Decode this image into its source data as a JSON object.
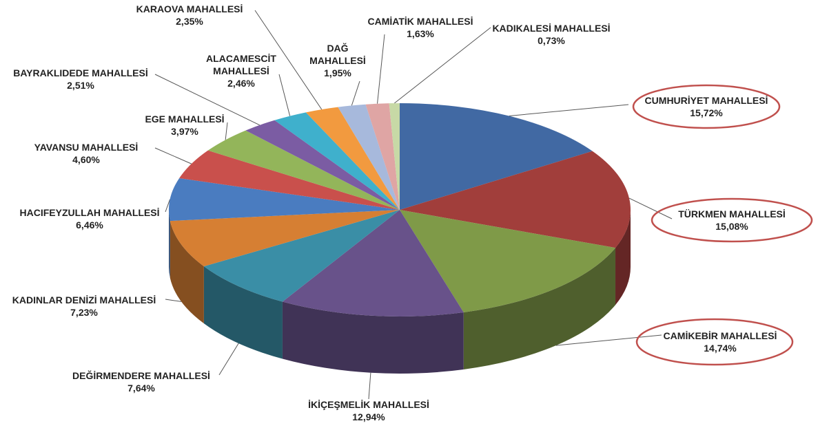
{
  "chart_data": {
    "type": "pie3d",
    "categories": [
      "CUMHURİYET MAHALLESİ",
      "TÜRKMEN MAHALLESİ",
      "CAMİKEBİR MAHALLESİ",
      "İKİÇEŞMELİK MAHALLESİ",
      "DEĞİRMENDERE MAHALLESİ",
      "KADINLAR DENİZİ MAHALLESİ",
      "HACIFEYZULLAH MAHALLESİ",
      "YAVANSU MAHALLESİ",
      "EGE MAHALLESİ",
      "BAYRAKLIDEDE MAHALLESİ",
      "ALACAMESCİT MAHALLESİ",
      "KARAOVA MAHALLESİ",
      "DAĞ MAHALLESİ",
      "CAMİATİK MAHALLESİ",
      "KADIKALESİ MAHALLESİ"
    ],
    "values": [
      15.72,
      15.08,
      14.74,
      12.94,
      7.64,
      7.23,
      6.46,
      4.6,
      3.97,
      2.51,
      2.46,
      2.35,
      1.95,
      1.63,
      0.73
    ],
    "value_labels": [
      "15,72%",
      "15,08%",
      "14,74%",
      "12,94%",
      "7,64%",
      "7,23%",
      "6,46%",
      "4,60%",
      "3,97%",
      "2,51%",
      "2,46%",
      "2,35%",
      "1,95%",
      "1,63%",
      "0,73%"
    ],
    "colors": [
      "#4169a3",
      "#a13e3b",
      "#7f9a48",
      "#68528a",
      "#3a8ea6",
      "#d67f33",
      "#4a7cc0",
      "#c9504c",
      "#93b55a",
      "#7b5ca3",
      "#3fb0cc",
      "#f29a3f",
      "#a7b9dc",
      "#dfa5a4",
      "#c7d9a6"
    ]
  }
}
